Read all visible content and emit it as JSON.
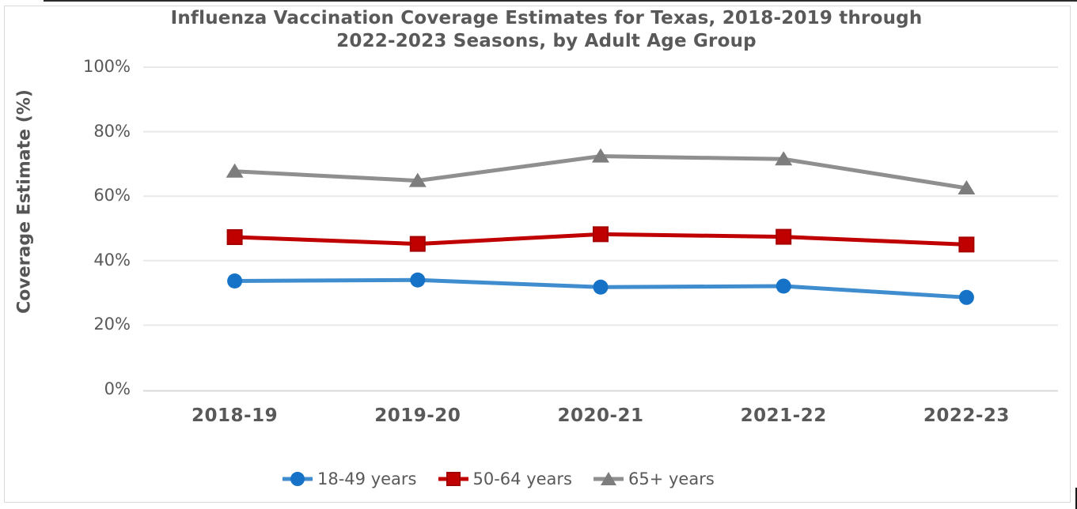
{
  "title": {
    "line1": "Influenza Vaccination Coverage Estimates for Texas, 2018-2019 through",
    "line2": "2022-2023 Seasons, by Adult Age Group"
  },
  "y_axis": {
    "label": "Coverage Estimate (%)",
    "tick_labels": [
      "0%",
      "20%",
      "40%",
      "60%",
      "80%",
      "100%"
    ]
  },
  "x_axis": {
    "categories": [
      "2018-19",
      "2019-20",
      "2020-21",
      "2021-22",
      "2022-23"
    ]
  },
  "legend": {
    "items": [
      "18-49 years",
      "50-64 years",
      "65+ years"
    ]
  },
  "colors": {
    "text": "#595959",
    "gridline": "#e9e9e9",
    "axis_line": "#d9d9d9",
    "background": "#ffffff",
    "frame_border": "#d9d9d9",
    "blue_line": "#3f8dce",
    "blue_marker": "#1572c6",
    "red_line": "#c00000",
    "red_marker": "#c00000",
    "red_marker_stroke": "#a50000",
    "gray_line": "#8f8f8f",
    "gray_marker": "#7d7d7d"
  },
  "chart_data": {
    "type": "line",
    "title": "Influenza Vaccination Coverage Estimates for Texas, 2018-2019 through 2022-2023 Seasons, by Adult Age Group",
    "xlabel": "",
    "ylabel": "Coverage Estimate (%)",
    "ylim": [
      0,
      100
    ],
    "yticks": [
      0,
      20,
      40,
      60,
      80,
      100
    ],
    "grid": true,
    "legend_position": "bottom",
    "categories": [
      "2018-19",
      "2019-20",
      "2020-21",
      "2021-22",
      "2022-23"
    ],
    "series": [
      {
        "name": "18-49 years",
        "marker": "circle",
        "line_color": "#3f8dce",
        "marker_color": "#1572c6",
        "values": [
          33.7,
          34.0,
          31.8,
          32.1,
          28.6
        ]
      },
      {
        "name": "50-64 years",
        "marker": "square",
        "line_color": "#c00000",
        "marker_color": "#c00000",
        "values": [
          47.3,
          45.2,
          48.2,
          47.4,
          45.0
        ]
      },
      {
        "name": "65+ years",
        "marker": "triangle",
        "line_color": "#8f8f8f",
        "marker_color": "#7d7d7d",
        "values": [
          67.7,
          64.8,
          72.4,
          71.5,
          62.5
        ]
      }
    ]
  }
}
